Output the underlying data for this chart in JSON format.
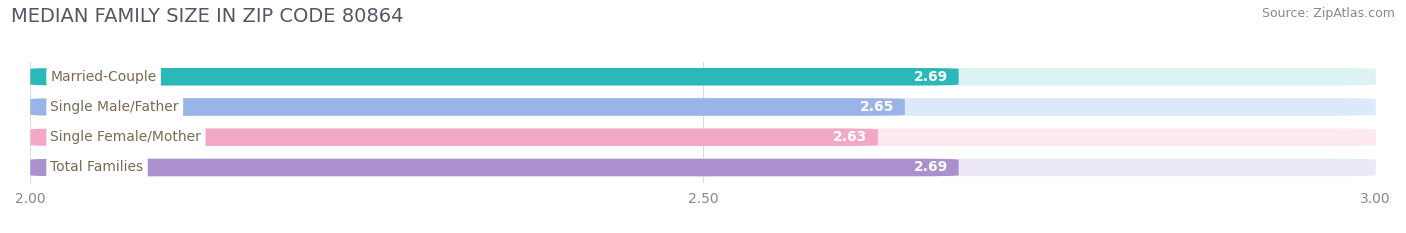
{
  "title": "MEDIAN FAMILY SIZE IN ZIP CODE 80864",
  "source": "Source: ZipAtlas.com",
  "categories": [
    "Married-Couple",
    "Single Male/Father",
    "Single Female/Mother",
    "Total Families"
  ],
  "values": [
    2.69,
    2.65,
    2.63,
    2.69
  ],
  "bar_colors": [
    "#2ab8b8",
    "#9ab4e8",
    "#f4a8c8",
    "#aa90cc"
  ],
  "bar_bg_colors": [
    "#ddf2f2",
    "#dde8f8",
    "#fde8f0",
    "#ede8f8"
  ],
  "label_text_color": "#7a6a50",
  "value_text_color": "#ffffff",
  "xmin": 2.0,
  "xmax": 3.0,
  "xticks": [
    2.0,
    2.5,
    3.0
  ],
  "xtick_labels": [
    "2.00",
    "2.50",
    "3.00"
  ],
  "title_fontsize": 14,
  "source_fontsize": 9,
  "label_fontsize": 10,
  "value_fontsize": 10,
  "tick_fontsize": 10,
  "bar_height": 0.58,
  "background_color": "#ffffff",
  "grid_color": "#dddddd",
  "title_color": "#555566",
  "source_color": "#888888",
  "tick_color": "#888888"
}
